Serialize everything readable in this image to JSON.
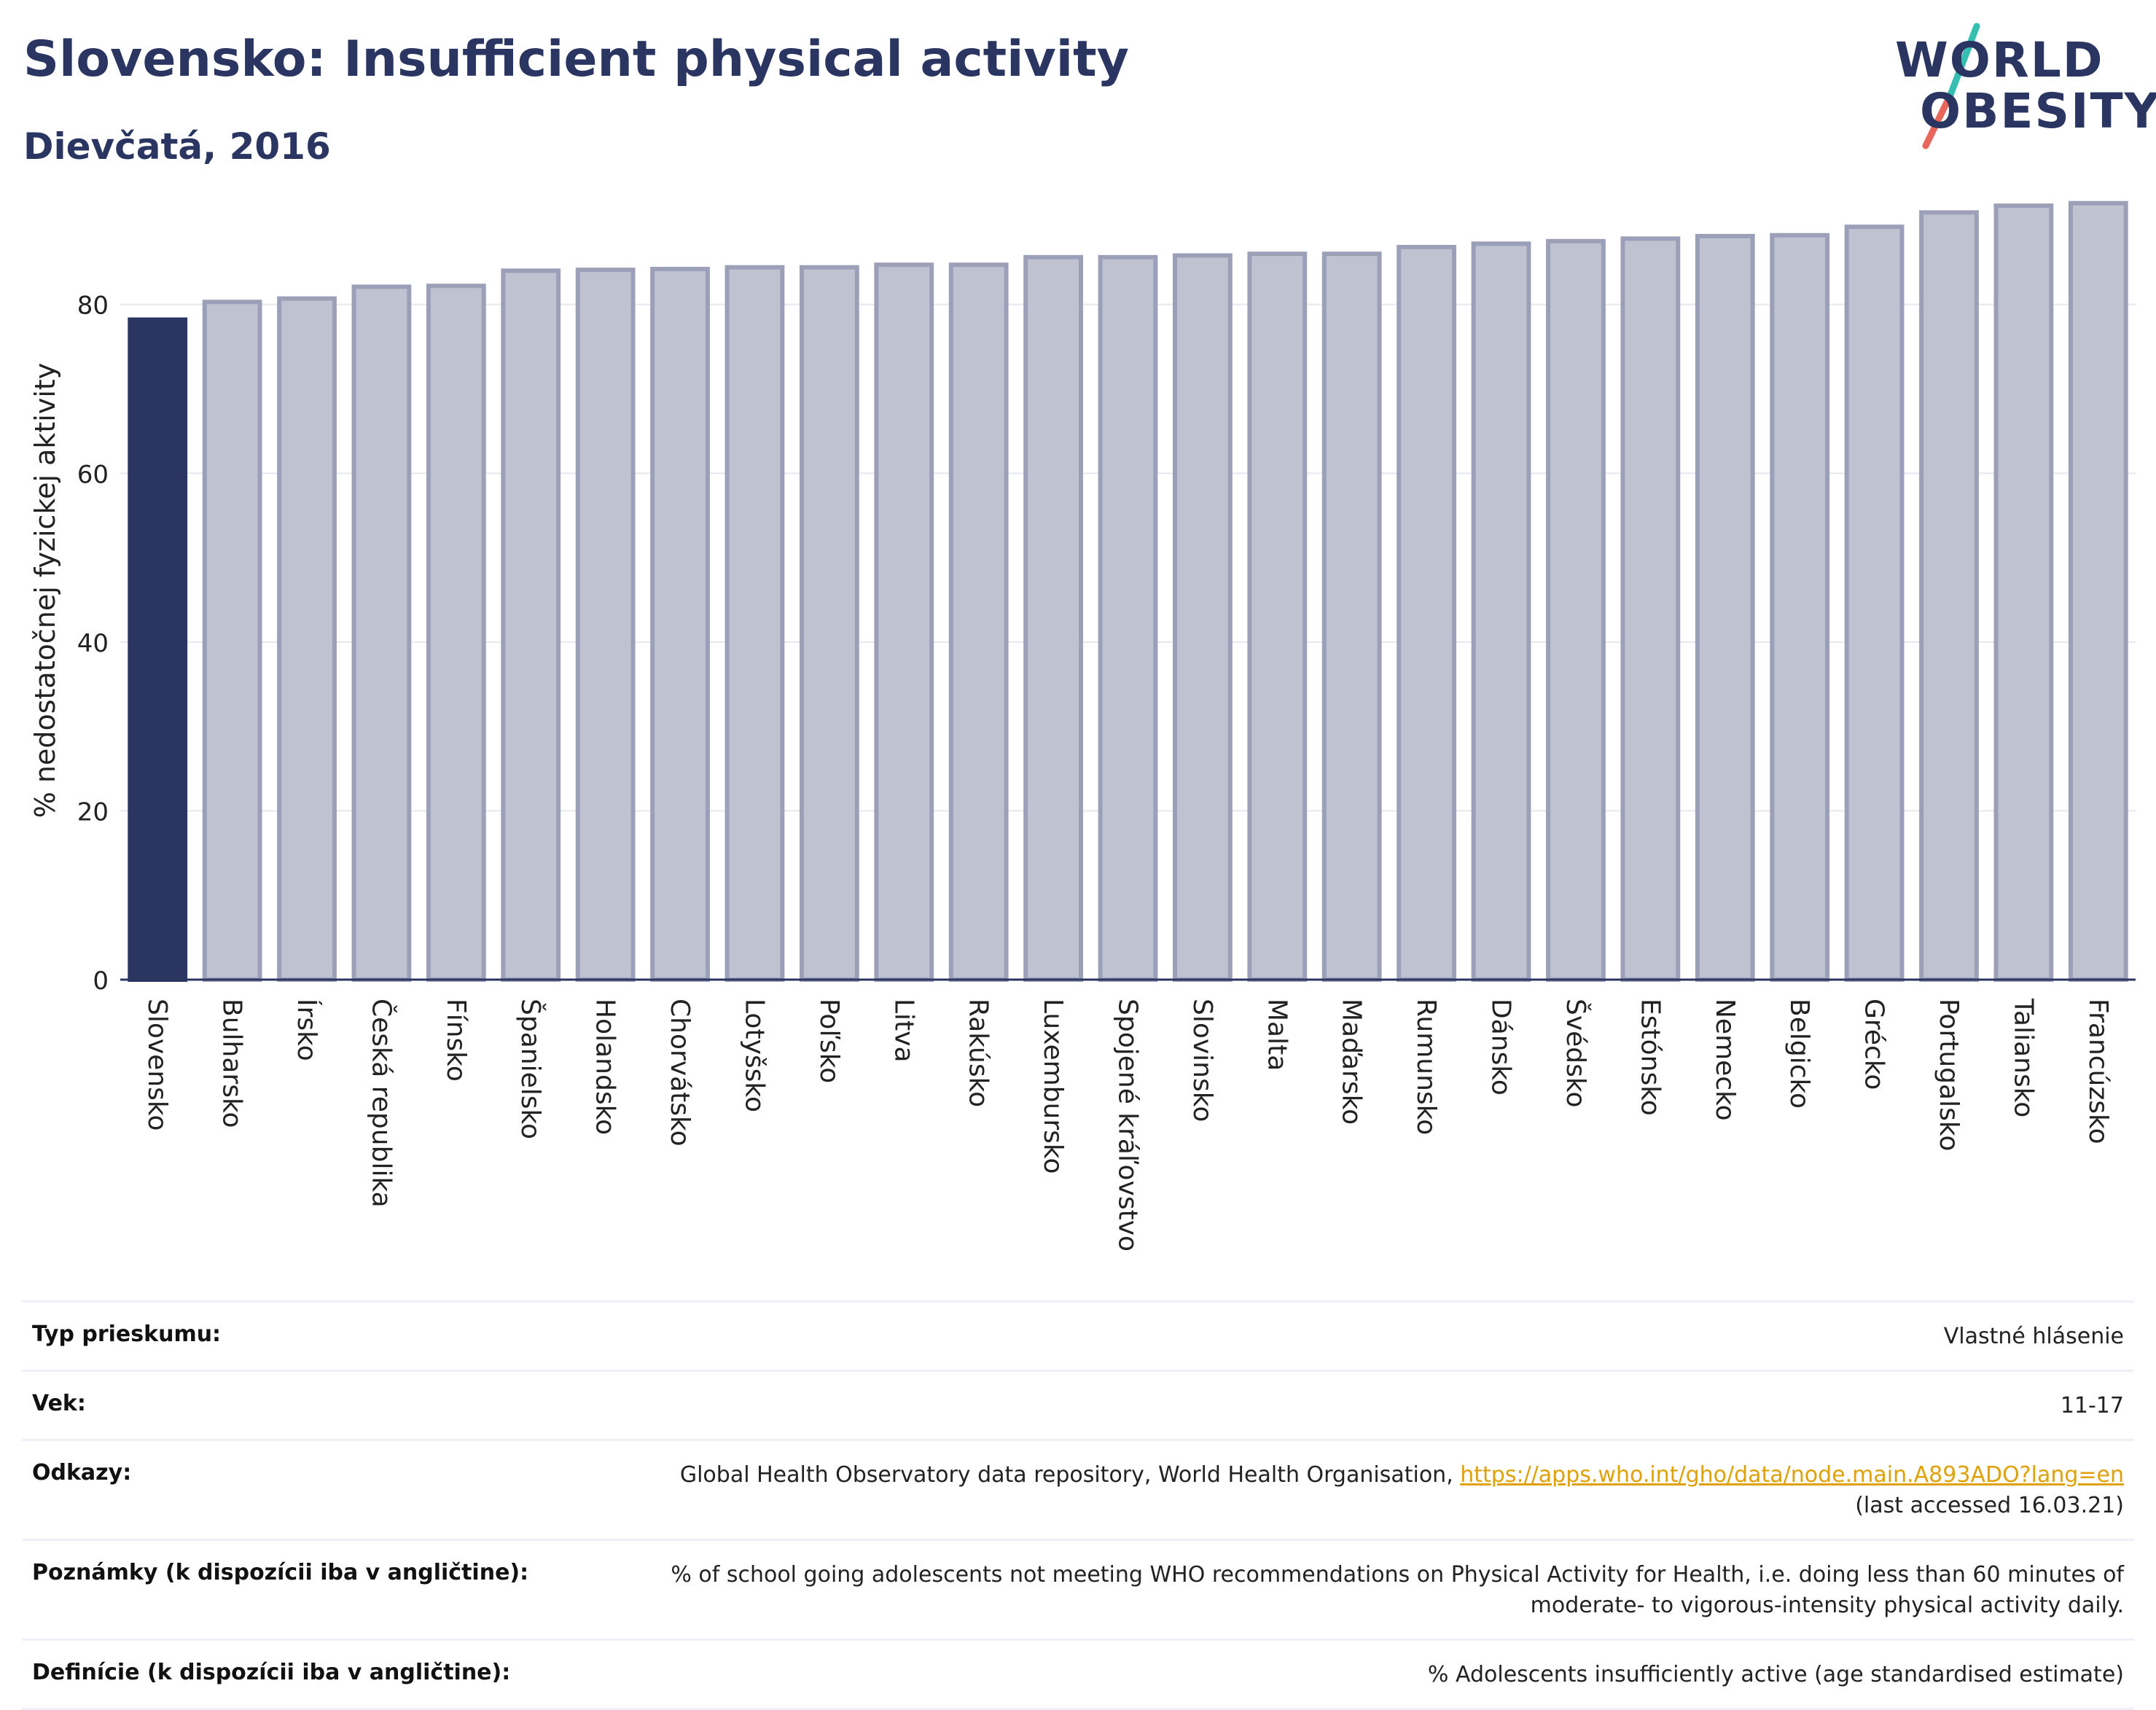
{
  "header": {
    "title": "Slovensko: Insufficient physical activity",
    "subtitle": "Dievčatá, 2016"
  },
  "logo": {
    "line1": "WORLD",
    "line2": "OBESITY"
  },
  "colors": {
    "highlight": "#2a3561",
    "bar": "#bfc3d1",
    "bar_edge": "#9ba0b8",
    "logo_teal": "#35bfb1",
    "logo_red": "#e8665a",
    "link": "#e0a106"
  },
  "chart_data": {
    "type": "bar",
    "title": "Slovensko: Insufficient physical activity",
    "subtitle": "Dievčatá, 2016",
    "ylabel": "% nedostatočnej fyzickej aktivity",
    "xlabel": "",
    "ylim": [
      0,
      95
    ],
    "yticks": [
      0,
      20,
      40,
      60,
      80
    ],
    "grid": true,
    "highlight_category": "Slovensko",
    "categories": [
      "Slovensko",
      "Bulharsko",
      "Írsko",
      "Česká republika",
      "Fínsko",
      "Španielsko",
      "Holandsko",
      "Chorvátsko",
      "Lotyšsko",
      "Poľsko",
      "Litva",
      "Rakúsko",
      "Luxembursko",
      "Spojené kráľovstvo",
      "Slovinsko",
      "Malta",
      "Maďarsko",
      "Rumunsko",
      "Dánsko",
      "Švédsko",
      "Estónsko",
      "Nemecko",
      "Belgicko",
      "Grécko",
      "Portugalsko",
      "Taliansko",
      "Francúzsko"
    ],
    "values": [
      78.2,
      80.3,
      80.7,
      82.1,
      82.2,
      84.0,
      84.1,
      84.2,
      84.4,
      84.4,
      84.7,
      84.7,
      85.6,
      85.6,
      85.8,
      86.0,
      86.0,
      86.8,
      87.2,
      87.5,
      87.8,
      88.1,
      88.2,
      89.2,
      90.9,
      91.7,
      92.0
    ]
  },
  "info": {
    "survey_type": {
      "label": "Typ prieskumu:",
      "value": "Vlastné hlásenie"
    },
    "age": {
      "label": "Vek:",
      "value": "11-17"
    },
    "references": {
      "label": "Odkazy:",
      "text": "Global Health Observatory data repository, World Health Organisation, ",
      "url": "https://apps.who.int/gho/data/node.main.A893ADO?lang=en",
      "accessed": "(last accessed 16.03.21)"
    },
    "notes": {
      "label": "Poznámky (k dispozícii iba v angličtine):",
      "line1": "% of school going adolescents not meeting WHO recommendations on Physical Activity for Health, i.e. doing less than 60 minutes of",
      "line2": "moderate- to vigorous-intensity physical activity daily."
    },
    "definitions": {
      "label": "Definície (k dispozícii iba v angličtine):",
      "value": "% Adolescents insufficiently active (age standardised estimate)"
    }
  }
}
